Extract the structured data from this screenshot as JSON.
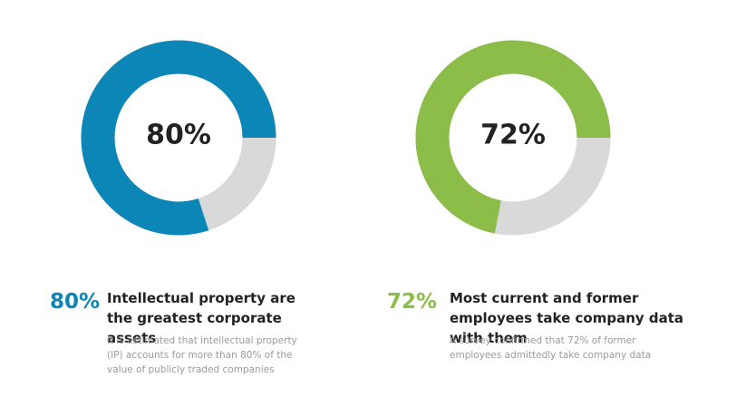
{
  "chart_data": [
    {
      "type": "donut",
      "values": [
        80
      ],
      "value_labels": [
        "80%"
      ],
      "color": "#0b86b7",
      "track_color": "#d9d9d9",
      "title": "Intellectual property are the greatest corporate assets",
      "subtitle": "It is estimated that intellectual property (IP) accounts for more than 80% of the value of publicly traded companies"
    },
    {
      "type": "donut",
      "values": [
        72
      ],
      "value_labels": [
        "72%"
      ],
      "color": "#8bbd48",
      "track_color": "#d9d9d9",
      "title": "Most current and former employees take  company data with them",
      "subtitle": "A survey confirmed that  72% of former employees admittedly take company data"
    }
  ]
}
